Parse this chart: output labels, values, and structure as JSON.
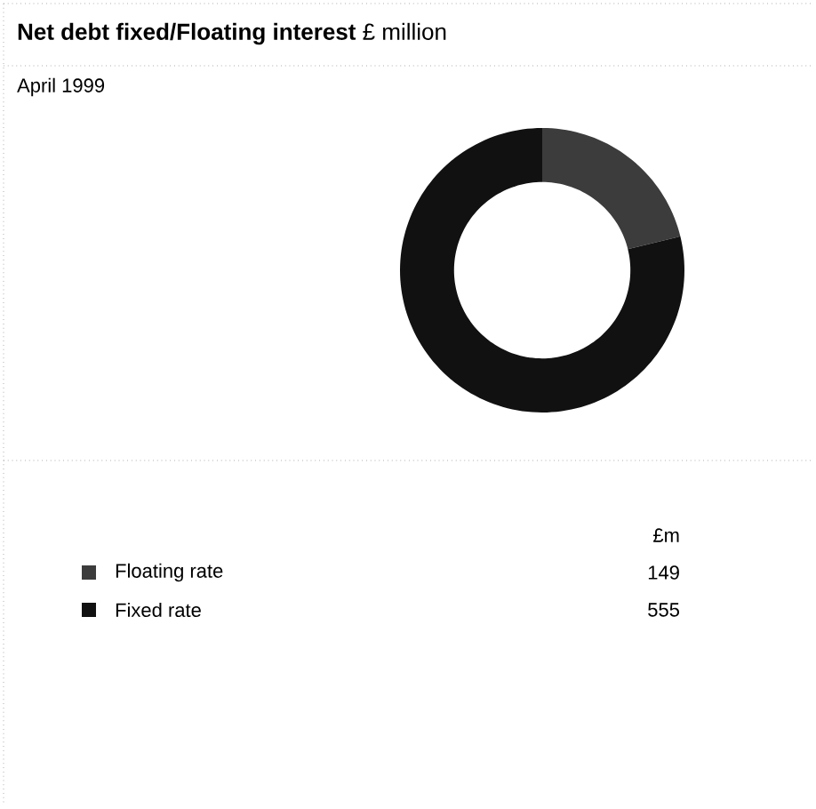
{
  "chart_data": {
    "type": "donut",
    "title": "**Net debt fixed/Floating interest** £ million",
    "subtitle": "April 1999",
    "categories": [
      "Floating rate",
      "Fixed rate"
    ],
    "values": [
      149,
      555
    ],
    "colors": [
      "#3c3c3c",
      "#111111"
    ],
    "legend_title": "£m",
    "data_labels": true,
    "legend": "bottom"
  }
}
